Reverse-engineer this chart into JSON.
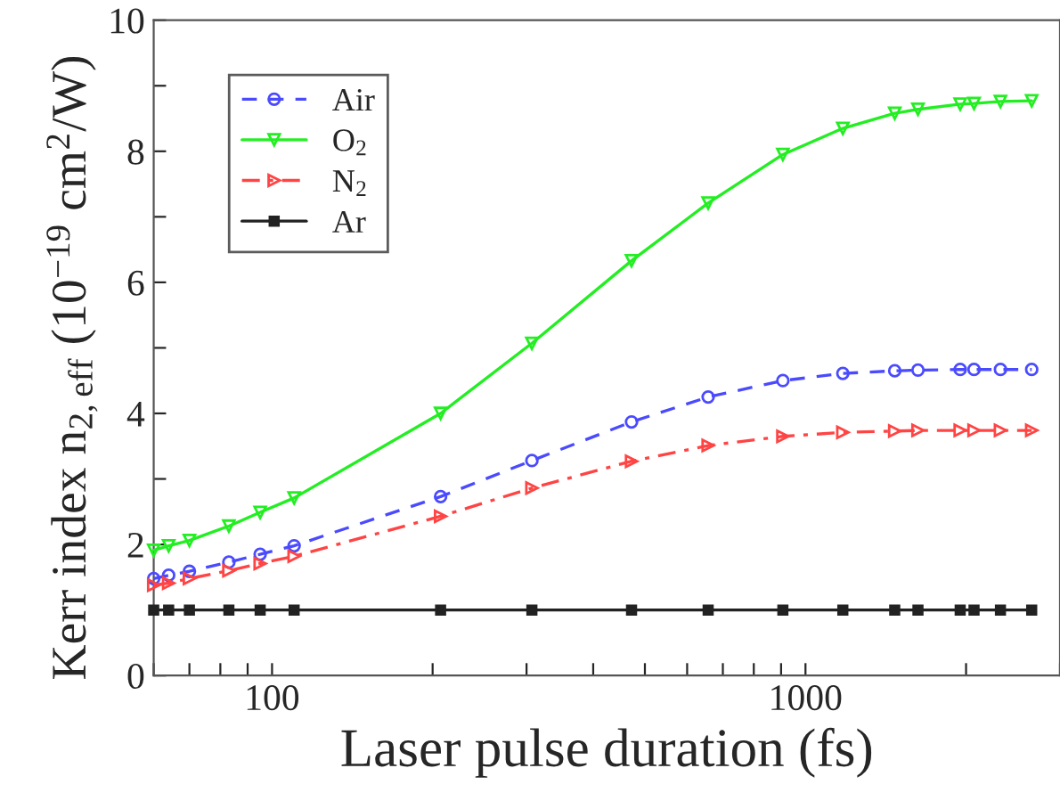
{
  "chart_data": {
    "type": "line",
    "xlabel": "Laser pulse duration (fs)",
    "ylabel": "Kerr index n$_{2,eff}$ (10$^{−19}$ cm$^{2}$/W)",
    "log": "x",
    "xlim": [
      60,
      3000
    ],
    "ylim": [
      0,
      10
    ],
    "xticks": [
      {
        "value": 60,
        "label": null
      },
      {
        "value": 70,
        "label": null
      },
      {
        "value": 80,
        "label": null
      },
      {
        "value": 90,
        "label": null
      },
      100,
      {
        "value": 200,
        "label": null
      },
      {
        "value": 300,
        "label": null
      },
      {
        "value": 400,
        "label": null
      },
      {
        "value": 500,
        "label": null
      },
      {
        "value": 600,
        "label": null
      },
      {
        "value": 700,
        "label": null
      },
      {
        "value": 800,
        "label": null
      },
      {
        "value": 900,
        "label": null
      },
      1000,
      {
        "value": 2000,
        "label": null
      },
      {
        "value": 3000,
        "label": null
      }
    ],
    "yticks": [
      0,
      {
        "value": 1,
        "label": null
      },
      2,
      {
        "value": 3,
        "label": null
      },
      4,
      {
        "value": 5,
        "label": null
      },
      6,
      {
        "value": 7,
        "label": null
      },
      8,
      {
        "value": 9,
        "label": null
      },
      10
    ],
    "grid": false,
    "legend": "top left",
    "x": [
      60,
      64,
      70,
      83,
      95,
      110,
      207,
      307,
      472,
      657,
      907,
      1175,
      1470,
      1625,
      1950,
      2070,
      2320,
      2655
    ],
    "series": [
      {
        "name": "Air",
        "color": "#4a4aff",
        "marker": "circle",
        "line_style": "dashed",
        "values": [
          1.48,
          1.53,
          1.59,
          1.73,
          1.85,
          1.98,
          2.73,
          3.28,
          3.87,
          4.25,
          4.5,
          4.61,
          4.65,
          4.66,
          4.67,
          4.67,
          4.67,
          4.67
        ]
      },
      {
        "name": "O$_{2}$",
        "color": "#22ee22",
        "marker": "triangle_down",
        "line_style": "solid",
        "values": [
          1.91,
          1.98,
          2.06,
          2.28,
          2.49,
          2.71,
          4.0,
          5.07,
          6.33,
          7.21,
          7.95,
          8.35,
          8.58,
          8.64,
          8.72,
          8.73,
          8.76,
          8.77
        ]
      },
      {
        "name": "N$_{2}$",
        "color": "#ff4444",
        "marker": "triangle_right",
        "line_style": "dashdot",
        "values": [
          1.38,
          1.41,
          1.48,
          1.6,
          1.71,
          1.82,
          2.43,
          2.86,
          3.27,
          3.51,
          3.65,
          3.71,
          3.73,
          3.74,
          3.74,
          3.74,
          3.74,
          3.74
        ]
      },
      {
        "name": "Ar",
        "color": "#222222",
        "marker": "square",
        "line_style": "solid",
        "values": [
          1,
          1,
          1,
          1,
          1,
          1,
          1,
          1,
          1,
          1,
          1,
          1,
          1,
          1,
          1,
          1,
          1,
          1
        ]
      }
    ]
  }
}
